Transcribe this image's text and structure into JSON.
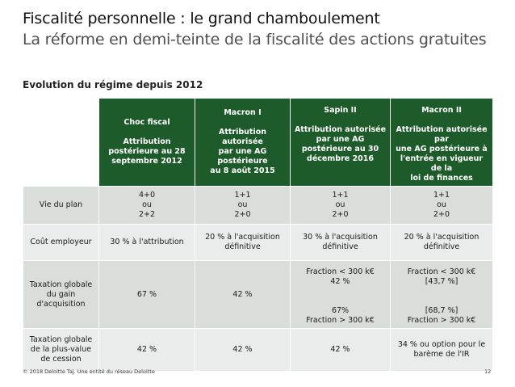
{
  "header": {
    "title": "Fiscalité personnelle : le grand chamboulement",
    "subtitle": "La réforme en demi-teinte de la fiscalité des actions gratuites"
  },
  "section_title": "Evolution du régime depuis 2012",
  "table": {
    "columns": [
      "Choc fiscal\n\nAttribution\npostérieure au 28\nseptembre 2012",
      "Macron I\n\nAttribution autorisée\npar une AG postérieure\nau 8 août 2015",
      "Sapin II\n\nAttribution autorisée\npar une AG\npostérieure au 30\ndécembre 2016",
      "Macron II\n\nAttribution autorisée par\nune AG postérieure à\nl'entrée en vigueur de la\nloi de finances"
    ],
    "rows": [
      {
        "label": "Vie du plan",
        "cells": [
          "4+0\nou\n2+2",
          "1+1\nou\n2+0",
          "1+1\nou\n2+0",
          "1+1\nou\n2+0"
        ]
      },
      {
        "label": "Coût employeur",
        "cells": [
          "30 % à l'attribution",
          "20 % à l'acquisition\ndéfinitive",
          "30 % à l'acquisition\ndéfinitive",
          "20 % à l'acquisition\ndéfinitive"
        ]
      },
      {
        "label": "Taxation globale\ndu gain\nd'acquisition",
        "cells": [
          "67 %",
          "42 %",
          "Fraction < 300 k€\n42 %\n\n\n67%\nFraction > 300 k€",
          "Fraction < 300 k€\n[43,7 %]\n\n\n[68,7 %]\nFraction > 300 k€"
        ]
      },
      {
        "label": "Taxation globale\nde la plus-value\nde cession",
        "cells": [
          "42 %",
          "42 %",
          "42 %",
          "34 % ou option pour le\nbarème de l'IR"
        ]
      }
    ]
  },
  "footer": {
    "copyright": "© 2018 Deloitte Taj. Une entité du réseau Deloitte",
    "page_number": "12"
  }
}
